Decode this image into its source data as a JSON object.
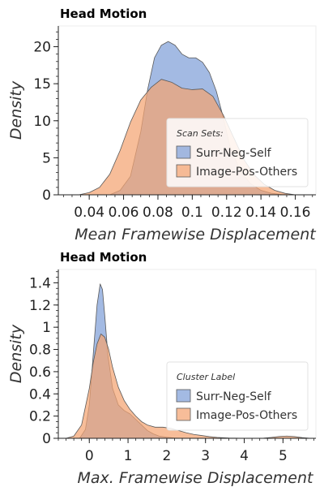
{
  "chart_data": [
    {
      "type": "area",
      "title": "Head Motion",
      "xlabel": "Mean Framewise Displacement",
      "ylabel": "Density",
      "xlim": [
        0.022,
        0.172
      ],
      "ylim": [
        0,
        22.8
      ],
      "xticks": [
        0.04,
        0.06,
        0.08,
        0.1,
        0.12,
        0.14,
        0.16
      ],
      "xtick_labels": [
        "0.04",
        "0.06",
        "0.08",
        "0.1",
        "0.12",
        "0.14",
        "0.16"
      ],
      "yticks": [
        0,
        5,
        10,
        15,
        20
      ],
      "ytick_labels": [
        "0",
        "5",
        "10",
        "15",
        "20"
      ],
      "legend": {
        "title": "Scan Sets:",
        "placement": "center-right"
      },
      "series": [
        {
          "name": "Surr-Neg-Self",
          "color": "#7f9fd8",
          "x": [
            0.052,
            0.058,
            0.064,
            0.07,
            0.074,
            0.078,
            0.082,
            0.086,
            0.09,
            0.094,
            0.098,
            0.102,
            0.106,
            0.11,
            0.114,
            0.118,
            0.122,
            0.128,
            0.134,
            0.14,
            0.146,
            0.152,
            0.158
          ],
          "y": [
            0,
            0.6,
            2.5,
            8.5,
            14.2,
            18.5,
            20.2,
            20.7,
            20.2,
            19.0,
            18.5,
            18.5,
            17.9,
            16.5,
            14.0,
            10.5,
            6.5,
            3.2,
            1.5,
            0.6,
            0.2,
            0.05,
            0
          ]
        },
        {
          "name": "Image-Pos-Others",
          "color": "#f4a472",
          "x": [
            0.034,
            0.04,
            0.046,
            0.052,
            0.058,
            0.064,
            0.07,
            0.076,
            0.082,
            0.088,
            0.094,
            0.1,
            0.106,
            0.112,
            0.118,
            0.124,
            0.13,
            0.136,
            0.142,
            0.148,
            0.154,
            0.16
          ],
          "y": [
            0,
            0.3,
            1.0,
            2.8,
            6.0,
            9.8,
            12.8,
            14.5,
            15.6,
            15.2,
            14.4,
            14.2,
            14.3,
            13.3,
            10.8,
            7.8,
            4.8,
            2.7,
            1.4,
            0.6,
            0.2,
            0
          ]
        }
      ]
    },
    {
      "type": "area",
      "title": "Head Motion",
      "xlabel": "Max. Framewise Displacement",
      "ylabel": "Density",
      "xlim": [
        -0.8,
        5.85
      ],
      "ylim": [
        0,
        1.52
      ],
      "xticks": [
        0,
        1,
        2,
        3,
        4,
        5
      ],
      "xtick_labels": [
        "0",
        "1",
        "2",
        "3",
        "4",
        "5"
      ],
      "yticks": [
        0,
        0.2,
        0.4,
        0.6,
        0.8,
        1.0,
        1.2,
        1.4
      ],
      "ytick_labels": [
        "0",
        "0.2",
        "0.4",
        "0.6",
        "0.8",
        "1",
        "1.2",
        "1.4"
      ],
      "legend": {
        "title": "Cluster Label",
        "placement": "center-right"
      },
      "series": [
        {
          "name": "Surr-Neg-Self",
          "color": "#7f9fd8",
          "x": [
            -0.25,
            -0.1,
            0.0,
            0.1,
            0.2,
            0.28,
            0.34,
            0.4,
            0.48,
            0.6,
            0.75,
            0.9,
            1.05,
            1.2,
            1.35,
            1.5,
            1.65,
            1.8,
            2.0,
            2.2,
            2.4
          ],
          "y": [
            0,
            0.08,
            0.3,
            0.75,
            1.2,
            1.39,
            1.34,
            1.1,
            0.75,
            0.45,
            0.3,
            0.25,
            0.22,
            0.17,
            0.12,
            0.07,
            0.04,
            0.02,
            0.01,
            0.003,
            0
          ]
        },
        {
          "name": "Image-Pos-Others",
          "color": "#f4a472",
          "x": [
            -0.6,
            -0.4,
            -0.2,
            0.0,
            0.1,
            0.2,
            0.3,
            0.4,
            0.5,
            0.6,
            0.75,
            0.9,
            1.05,
            1.2,
            1.35,
            1.5,
            1.7,
            1.9,
            2.1,
            2.3,
            2.5,
            2.7,
            2.9,
            3.1,
            3.3,
            3.6,
            3.9,
            4.2,
            4.5,
            4.7,
            4.9,
            5.1,
            5.3,
            5.5,
            5.7
          ],
          "y": [
            0,
            0.02,
            0.12,
            0.45,
            0.68,
            0.85,
            0.94,
            0.91,
            0.8,
            0.64,
            0.46,
            0.34,
            0.26,
            0.2,
            0.15,
            0.12,
            0.1,
            0.1,
            0.09,
            0.07,
            0.05,
            0.035,
            0.025,
            0.015,
            0.008,
            0.003,
            0.001,
            0.001,
            0.002,
            0.008,
            0.016,
            0.02,
            0.015,
            0.006,
            0
          ]
        }
      ]
    }
  ]
}
